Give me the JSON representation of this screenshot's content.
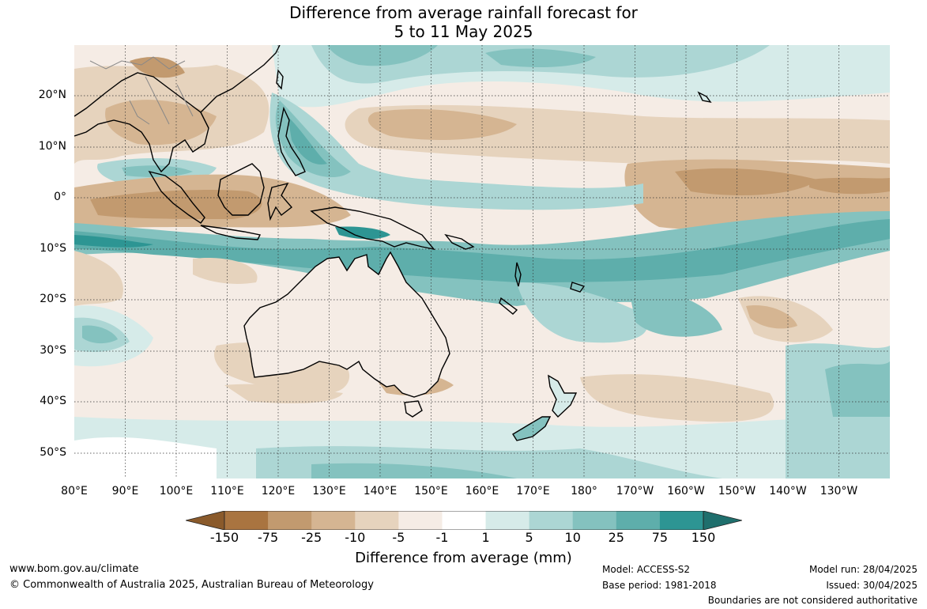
{
  "title": {
    "line1": "Difference from average rainfall forecast for",
    "line2": "5 to 11 May 2025"
  },
  "map": {
    "type": "anomaly-map",
    "lat_labels": [
      "20°N",
      "10°N",
      "0°",
      "10°S",
      "20°S",
      "30°S",
      "40°S",
      "50°S"
    ],
    "lon_labels": [
      "80°E",
      "90°E",
      "100°E",
      "110°E",
      "120°E",
      "130°E",
      "140°E",
      "150°E",
      "160°E",
      "170°E",
      "180°",
      "170°W",
      "160°W",
      "150°W",
      "140°W",
      "130°W"
    ],
    "extent": {
      "lon_min": 80,
      "lon_max": 240,
      "lat_min": -55,
      "lat_max": 30
    },
    "colors": {
      "dry_strong": "#a97440",
      "dry_mod": "#c29a6f",
      "dry_light": "#d5b592",
      "dry_weak": "#e6d3bd",
      "dry_faint": "#f5ece5",
      "neutral": "#ffffff",
      "wet_faint": "#d6ebe9",
      "wet_weak": "#acd6d4",
      "wet_light": "#84c2bf",
      "wet_mod": "#5eaeab",
      "wet_strong": "#2d9593",
      "wet_extreme": "#1f6f6d"
    }
  },
  "colorbar": {
    "title": "Difference from average (mm)",
    "tick_labels": [
      "-150",
      "-75",
      "-25",
      "-10",
      "-5",
      "-1",
      "1",
      "5",
      "10",
      "25",
      "75",
      "150"
    ],
    "segment_colors": [
      "#a97440",
      "#c29a6f",
      "#d5b592",
      "#e6d3bd",
      "#f5ece5",
      "#ffffff",
      "#d6ebe9",
      "#acd6d4",
      "#84c2bf",
      "#5eaeab",
      "#2d9593"
    ],
    "arrow_low_color": "#8a5a2b",
    "arrow_high_color": "#1f6f6d"
  },
  "footer": {
    "website": "www.bom.gov.au/climate",
    "copyright": "© Commonwealth of Australia 2025, Australian Bureau of Meteorology",
    "model": "Model: ACCESS-S2",
    "base_period": "Base period: 1981-2018",
    "model_run": "Model run: 28/04/2025",
    "issued": "Issued: 30/04/2025",
    "disclaimer": "Boundaries are not considered authoritative"
  }
}
